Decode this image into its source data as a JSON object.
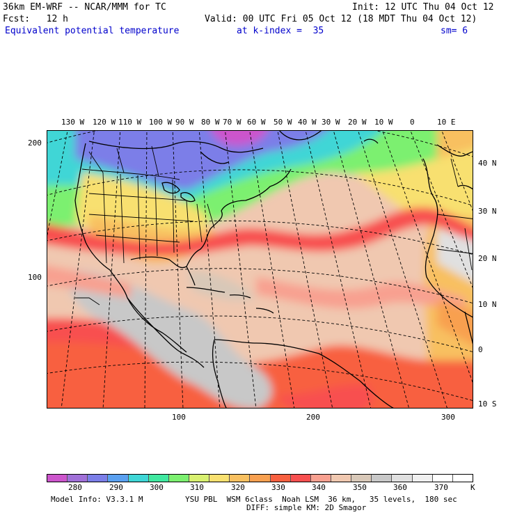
{
  "header": {
    "model_line": "36km EM-WRF -- NCAR/MMM for TC",
    "init_line": "Init: 12 UTC Thu 04 Oct 12",
    "fcst_line": "Fcst:   12 h",
    "valid_line": "Valid: 00 UTC Fri 05 Oct 12 (18 MDT Thu 04 Oct 12)",
    "field_name": "Equivalent potential temperature",
    "level_label": "at k-index =  35",
    "smoothing": "sm= 6"
  },
  "map": {
    "top_longitudes": [
      "130 W",
      "120 W",
      "110 W",
      "100 W",
      "90 W",
      "80 W",
      "70 W",
      "60 W",
      "50 W",
      "40 W",
      "30 W",
      "20 W",
      "10 W",
      "0",
      "10 E"
    ],
    "right_latitudes": [
      "40 N",
      "30 N",
      "20 N",
      "10 N",
      "0",
      "10 S"
    ],
    "left_grid_labels": [
      "200",
      "100"
    ],
    "bottom_grid_labels": [
      "100",
      "200",
      "300"
    ]
  },
  "colorbar": {
    "colors": [
      "#cc55cc",
      "#a070d8",
      "#7b7ee8",
      "#5aa0f0",
      "#3fd6d6",
      "#40e8a0",
      "#7cf070",
      "#d8f070",
      "#f8e070",
      "#f8c060",
      "#f8a050",
      "#f86040",
      "#f85050",
      "#f8a090",
      "#f0c8b0",
      "#d8c8b8",
      "#c8c8c8",
      "#e0e0e0",
      "#f0f0f0",
      "#ffffff",
      "#ffffff"
    ],
    "tick_labels": [
      "280",
      "290",
      "300",
      "310",
      "320",
      "330",
      "340",
      "350",
      "360",
      "370"
    ],
    "unit": "K"
  },
  "footer": {
    "model_info": "Model Info: V3.3.1 M",
    "physics_line1": "YSU PBL  WSM 6class  Noah LSM  36 km,   35 levels,  180 sec",
    "physics_line2": "DIFF: simple KM: 2D Smagor"
  }
}
